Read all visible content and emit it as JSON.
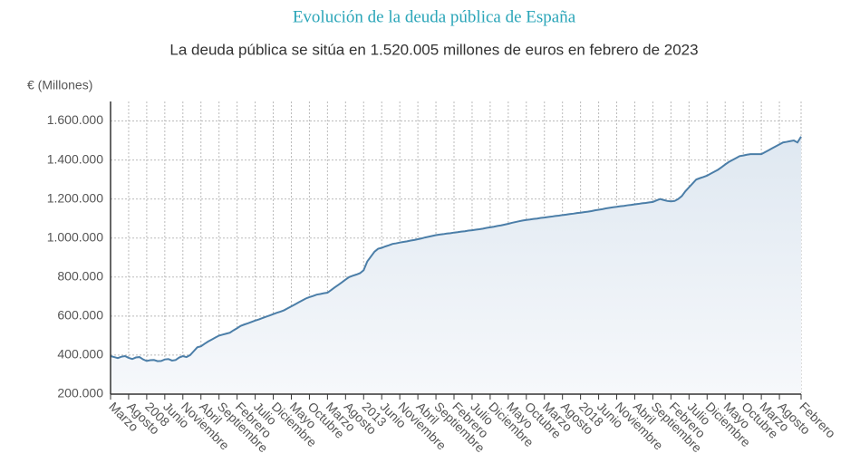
{
  "chart_data": {
    "type": "area",
    "title": "Evolución de la deuda pública de España",
    "subtitle": "La deuda pública se sitúa en 1.520.005 millones de euros en febrero de 2023",
    "y_label": "€ (Millones)",
    "color": "#4b7ea8",
    "grid": true,
    "ylim": [
      200000,
      1700000
    ],
    "yticks": [
      {
        "value": 200000,
        "label": "200.000"
      },
      {
        "value": 400000,
        "label": "400.000"
      },
      {
        "value": 600000,
        "label": "600.000"
      },
      {
        "value": 800000,
        "label": "800.000"
      },
      {
        "value": 1000000,
        "label": "1.000.000"
      },
      {
        "value": 1200000,
        "label": "1.200.000"
      },
      {
        "value": 1400000,
        "label": "1.400.000"
      },
      {
        "value": 1600000,
        "label": "1.600.000"
      }
    ],
    "categories": [
      "Marzo",
      null,
      null,
      null,
      null,
      "Agosto",
      null,
      null,
      null,
      null,
      "2008",
      null,
      null,
      null,
      null,
      "Junio",
      null,
      null,
      null,
      null,
      "Noviembre",
      null,
      null,
      null,
      null,
      "Abril",
      null,
      null,
      null,
      null,
      "Septiembre",
      null,
      null,
      null,
      null,
      "Febrero",
      null,
      null,
      null,
      null,
      "Julio",
      null,
      null,
      null,
      null,
      "Diciembre",
      null,
      null,
      null,
      null,
      "Mayo",
      null,
      null,
      null,
      null,
      "Octubre",
      null,
      null,
      null,
      null,
      "Marzo",
      null,
      null,
      null,
      null,
      "Agosto",
      null,
      null,
      null,
      null,
      "2013",
      null,
      null,
      null,
      null,
      "Junio",
      null,
      null,
      null,
      null,
      "Noviembre",
      null,
      null,
      null,
      null,
      "Abril",
      null,
      null,
      null,
      null,
      "Septiembre",
      null,
      null,
      null,
      null,
      "Febrero",
      null,
      null,
      null,
      null,
      "Julio",
      null,
      null,
      null,
      null,
      "Diciembre",
      null,
      null,
      null,
      null,
      "Mayo",
      null,
      null,
      null,
      null,
      "Octubre",
      null,
      null,
      null,
      null,
      "Marzo",
      null,
      null,
      null,
      null,
      "Agosto",
      null,
      null,
      null,
      null,
      "2018",
      null,
      null,
      null,
      null,
      "Junio",
      null,
      null,
      null,
      null,
      "Noviembre",
      null,
      null,
      null,
      null,
      "Abril",
      null,
      null,
      null,
      null,
      "Septiembre",
      null,
      null,
      null,
      null,
      "Febrero",
      null,
      null,
      null,
      null,
      "Julio",
      null,
      null,
      null,
      null,
      "Diciembre",
      null,
      null,
      null,
      null,
      "Mayo",
      null,
      null,
      null,
      null,
      "Octubre",
      null,
      null,
      null,
      null,
      "Marzo",
      null,
      null,
      null,
      null,
      "Agosto",
      null,
      null,
      null,
      null,
      null,
      "Febrero"
    ],
    "values": [
      395000,
      390000,
      385000,
      392000,
      395000,
      386000,
      380000,
      388000,
      390000,
      378000,
      370000,
      374000,
      375000,
      369000,
      370000,
      378000,
      380000,
      372000,
      375000,
      388000,
      395000,
      390000,
      400000,
      420000,
      440000,
      445000,
      458000,
      470000,
      480000,
      490000,
      500000,
      505000,
      510000,
      515000,
      527000,
      538000,
      550000,
      557000,
      563000,
      570000,
      577000,
      583000,
      590000,
      597000,
      603000,
      610000,
      617000,
      623000,
      630000,
      640000,
      650000,
      660000,
      670000,
      680000,
      690000,
      697000,
      703000,
      710000,
      713000,
      717000,
      720000,
      733000,
      747000,
      760000,
      773000,
      787000,
      800000,
      807000,
      813000,
      820000,
      835000,
      880000,
      905000,
      930000,
      945000,
      950000,
      957000,
      963000,
      970000,
      973000,
      977000,
      980000,
      983000,
      987000,
      990000,
      994000,
      998000,
      1003000,
      1007000,
      1011000,
      1015000,
      1018000,
      1020000,
      1023000,
      1025000,
      1028000,
      1030000,
      1033000,
      1035000,
      1038000,
      1040000,
      1043000,
      1045000,
      1048000,
      1052000,
      1055000,
      1058000,
      1062000,
      1065000,
      1069000,
      1073000,
      1078000,
      1082000,
      1086000,
      1090000,
      1093000,
      1095000,
      1098000,
      1100000,
      1103000,
      1105000,
      1108000,
      1110000,
      1113000,
      1115000,
      1118000,
      1120000,
      1123000,
      1125000,
      1128000,
      1130000,
      1133000,
      1135000,
      1138000,
      1142000,
      1145000,
      1148000,
      1152000,
      1155000,
      1158000,
      1160000,
      1163000,
      1165000,
      1168000,
      1170000,
      1173000,
      1175000,
      1178000,
      1180000,
      1183000,
      1185000,
      1193000,
      1200000,
      1195000,
      1190000,
      1188000,
      1190000,
      1200000,
      1215000,
      1240000,
      1260000,
      1280000,
      1300000,
      1307000,
      1313000,
      1320000,
      1330000,
      1340000,
      1350000,
      1363000,
      1377000,
      1390000,
      1400000,
      1410000,
      1420000,
      1423000,
      1427000,
      1430000,
      1430000,
      1430000,
      1430000,
      1440000,
      1450000,
      1460000,
      1470000,
      1480000,
      1490000,
      1493000,
      1497000,
      1500000,
      1490000,
      1520005
    ]
  }
}
